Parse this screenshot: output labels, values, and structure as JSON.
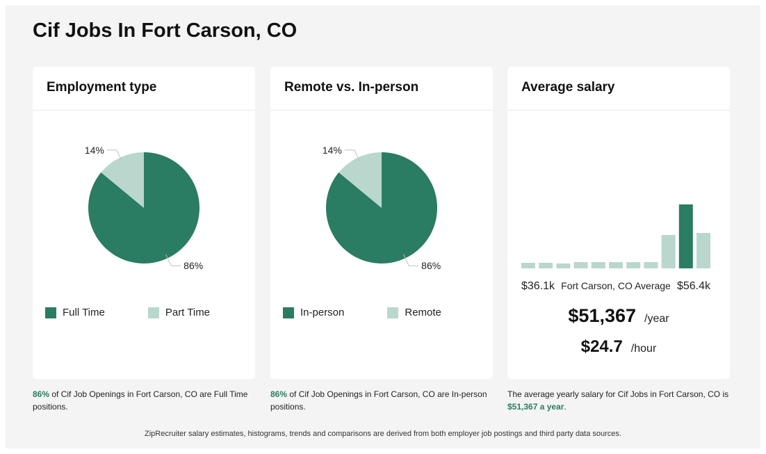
{
  "page": {
    "title": "Cif Jobs In Fort Carson, CO"
  },
  "colors": {
    "primary": "#2a7c63",
    "secondary": "#b9d7cd",
    "leader": "#bfbfbf"
  },
  "cards": {
    "employment": {
      "title": "Employment type",
      "legend": [
        "Full Time",
        "Part Time"
      ],
      "caption": {
        "highlight": "86%",
        "text": " of Cif Job Openings in Fort Carson, CO are Full Time positions."
      }
    },
    "remote": {
      "title": "Remote vs. In-person",
      "legend": [
        "In-person",
        "Remote"
      ],
      "caption": {
        "highlight": "86%",
        "text": " of Cif Job Openings in Fort Carson, CO are In-person positions."
      }
    },
    "salary": {
      "title": "Average salary",
      "range_low": "$36.1k",
      "range_label": "Fort Carson, CO Average",
      "range_high": "$56.4k",
      "yearly": "$51,367",
      "yearly_unit": "/year",
      "hourly": "$24.7",
      "hourly_unit": "/hour",
      "caption": {
        "text": "The average yearly salary for Cif Jobs in Fort Carson, CO is ",
        "highlight": "$51,367 a year",
        "end": "."
      }
    }
  },
  "footer": {
    "note": "ZipRecruiter salary estimates, histograms, trends and comparisons are derived from both employer job postings and third party data sources."
  },
  "chart_data": [
    {
      "type": "pie",
      "title": "Employment type",
      "labels": [
        "Full Time",
        "Part Time"
      ],
      "values": [
        86,
        14
      ],
      "data_labels": [
        "86%",
        "14%"
      ]
    },
    {
      "type": "pie",
      "title": "Remote vs. In-person",
      "labels": [
        "In-person",
        "Remote"
      ],
      "values": [
        86,
        14
      ],
      "data_labels": [
        "86%",
        "14%"
      ]
    },
    {
      "type": "bar",
      "title": "Average salary",
      "xlabel": "",
      "ylabel": "",
      "range": [
        "$36.1k",
        "$56.4k"
      ],
      "values": [
        8,
        8,
        7,
        9,
        9,
        9,
        9,
        9,
        48,
        92,
        51
      ],
      "highlight_index": 9
    }
  ]
}
